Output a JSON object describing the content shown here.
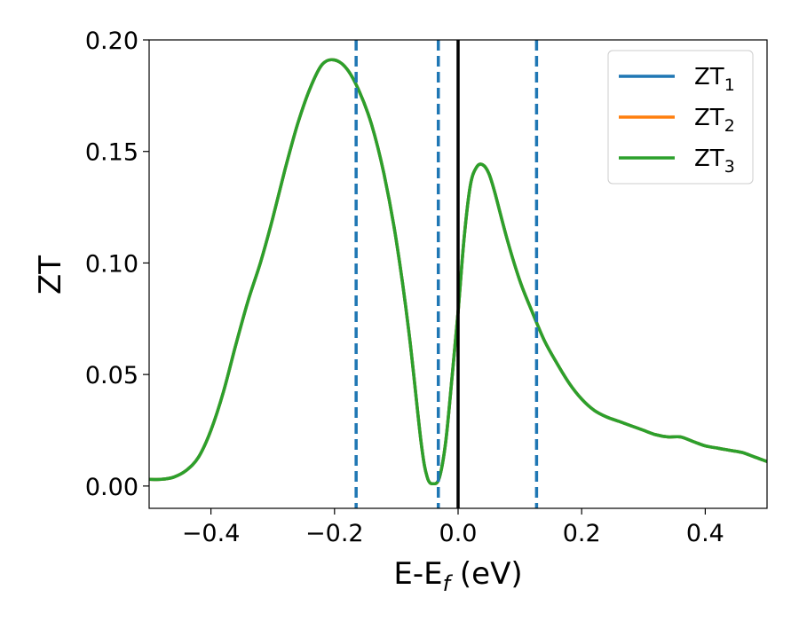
{
  "chart_data": {
    "type": "line",
    "title": "",
    "xlabel": "E-E",
    "xlabel_sub": "f",
    "xlabel_unit": " (eV)",
    "ylabel": "ZT",
    "xlim": [
      -0.5,
      0.5
    ],
    "ylim": [
      -0.01,
      0.2
    ],
    "xticks": [
      -0.4,
      -0.2,
      0.0,
      0.2,
      0.4
    ],
    "xtick_labels": [
      "−0.4",
      "−0.2",
      "0.0",
      "0.2",
      "0.4"
    ],
    "yticks": [
      0.0,
      0.05,
      0.1,
      0.15,
      0.2
    ],
    "ytick_labels": [
      "0.00",
      "0.05",
      "0.10",
      "0.15",
      "0.20"
    ],
    "grid": false,
    "legend_position": "top-right",
    "series": [
      {
        "name": "ZT",
        "sub": "1",
        "color": "#1f77b4"
      },
      {
        "name": "ZT",
        "sub": "2",
        "color": "#ff7f0e"
      },
      {
        "name": "ZT",
        "sub": "3",
        "color": "#2ca02c"
      }
    ],
    "x": [
      -0.5,
      -0.48,
      -0.46,
      -0.44,
      -0.42,
      -0.4,
      -0.38,
      -0.36,
      -0.34,
      -0.32,
      -0.3,
      -0.28,
      -0.26,
      -0.24,
      -0.22,
      -0.2,
      -0.18,
      -0.16,
      -0.14,
      -0.12,
      -0.1,
      -0.08,
      -0.06,
      -0.05,
      -0.04,
      -0.03,
      -0.02,
      -0.01,
      0.0,
      0.01,
      0.02,
      0.03,
      0.04,
      0.05,
      0.06,
      0.08,
      0.1,
      0.12,
      0.14,
      0.16,
      0.18,
      0.2,
      0.22,
      0.24,
      0.26,
      0.28,
      0.3,
      0.32,
      0.34,
      0.36,
      0.38,
      0.4,
      0.42,
      0.44,
      0.46,
      0.48,
      0.5
    ],
    "y": [
      0.003,
      0.003,
      0.004,
      0.007,
      0.013,
      0.025,
      0.042,
      0.063,
      0.083,
      0.1,
      0.12,
      0.142,
      0.162,
      0.178,
      0.189,
      0.191,
      0.187,
      0.177,
      0.162,
      0.14,
      0.11,
      0.07,
      0.02,
      0.004,
      0.001,
      0.004,
      0.02,
      0.048,
      0.078,
      0.112,
      0.135,
      0.143,
      0.144,
      0.14,
      0.131,
      0.11,
      0.092,
      0.078,
      0.065,
      0.055,
      0.046,
      0.039,
      0.034,
      0.031,
      0.029,
      0.027,
      0.025,
      0.023,
      0.022,
      0.022,
      0.02,
      0.018,
      0.017,
      0.016,
      0.015,
      0.013,
      0.011
    ],
    "vlines": [
      {
        "x": -0.165,
        "style": "dashed",
        "color": "#1f77b4"
      },
      {
        "x": -0.032,
        "style": "dashed",
        "color": "#1f77b4"
      },
      {
        "x": 0.0,
        "style": "solid",
        "color": "#000000"
      },
      {
        "x": 0.127,
        "style": "dashed",
        "color": "#1f77b4"
      }
    ]
  }
}
